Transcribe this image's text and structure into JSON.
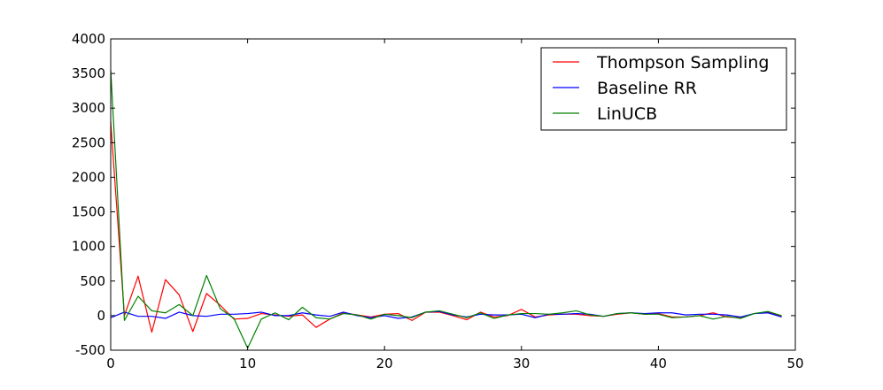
{
  "chart_data": {
    "type": "line",
    "title": "",
    "xlabel": "",
    "ylabel": "",
    "xlim": [
      0,
      50
    ],
    "ylim": [
      -500,
      4000
    ],
    "xticks": [
      0,
      10,
      20,
      30,
      40,
      50
    ],
    "yticks": [
      -500,
      0,
      500,
      1000,
      1500,
      2000,
      2500,
      3000,
      3500,
      4000
    ],
    "grid": false,
    "legend_position": "top-right",
    "x": [
      0,
      1,
      2,
      3,
      4,
      5,
      6,
      7,
      8,
      9,
      10,
      11,
      12,
      13,
      14,
      15,
      16,
      17,
      18,
      19,
      20,
      21,
      22,
      23,
      24,
      25,
      26,
      27,
      28,
      29,
      30,
      31,
      32,
      33,
      34,
      35,
      36,
      37,
      38,
      39,
      40,
      41,
      42,
      43,
      44,
      45,
      46,
      47,
      48,
      49
    ],
    "series": [
      {
        "name": "Thompson Sampling",
        "color": "#ff0000",
        "values": [
          2800,
          0,
          570,
          -240,
          520,
          300,
          -230,
          320,
          150,
          -50,
          -40,
          30,
          10,
          -10,
          10,
          -170,
          -50,
          40,
          10,
          -20,
          20,
          30,
          -70,
          50,
          50,
          0,
          -60,
          50,
          -20,
          0,
          90,
          -20,
          10,
          20,
          20,
          0,
          -10,
          20,
          40,
          20,
          30,
          -20,
          -20,
          0,
          40,
          -20,
          -30,
          30,
          50,
          -10
        ]
      },
      {
        "name": "Baseline RR",
        "color": "#0000ff",
        "values": [
          -30,
          50,
          -10,
          -10,
          -40,
          50,
          0,
          -10,
          20,
          20,
          30,
          50,
          0,
          0,
          40,
          10,
          -10,
          50,
          0,
          -30,
          0,
          -40,
          -20,
          50,
          60,
          10,
          -20,
          20,
          10,
          10,
          20,
          -30,
          20,
          20,
          30,
          20,
          -10,
          30,
          40,
          30,
          40,
          40,
          10,
          20,
          20,
          10,
          -20,
          30,
          40,
          -20
        ]
      },
      {
        "name": "LinUCB",
        "color": "#008000",
        "values": [
          3550,
          -70,
          280,
          70,
          40,
          160,
          0,
          580,
          100,
          -40,
          -470,
          -50,
          40,
          -60,
          120,
          -30,
          -50,
          30,
          10,
          -50,
          20,
          0,
          -30,
          50,
          70,
          20,
          -30,
          40,
          -40,
          10,
          30,
          30,
          20,
          40,
          70,
          10,
          -10,
          30,
          40,
          20,
          20,
          -30,
          -20,
          0,
          -50,
          -10,
          -40,
          30,
          60,
          0
        ]
      }
    ]
  }
}
